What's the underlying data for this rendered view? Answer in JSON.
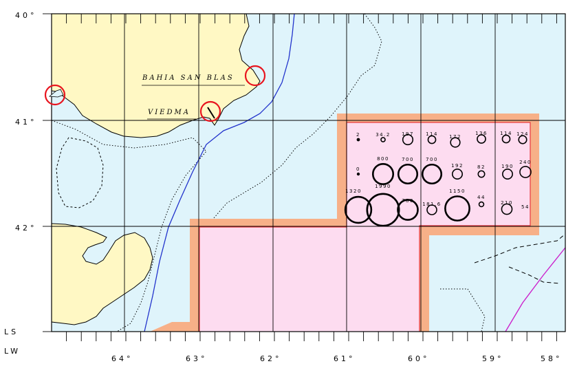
{
  "map": {
    "axes": {
      "longitude_labels": [
        "64°",
        "63°",
        "62°",
        "61°",
        "60°",
        "59°",
        "58°"
      ],
      "latitude_labels": [
        "40°",
        "41°",
        "42°"
      ],
      "lat_axis_name": "LS",
      "lon_axis_name": "LW"
    },
    "places": [
      {
        "id": "bahia-san-blas",
        "label": "BAHIA SAN BLAS"
      },
      {
        "id": "viedma",
        "label": "VIEDMA"
      }
    ],
    "colors": {
      "land": "#fff8c4",
      "sea": "#dff4fb",
      "study_area_fill": "#fddcf0",
      "study_area_border": "#f7b088",
      "boundary_line": "#e8383d",
      "highlight_circle": "#e8141e",
      "river": "#2233cc",
      "eez_line": "#cc22cc"
    },
    "stations": [
      {
        "value": "2"
      },
      {
        "value": "34.2"
      },
      {
        "value": "197"
      },
      {
        "value": "114"
      },
      {
        "value": "172"
      },
      {
        "value": "136"
      },
      {
        "value": "114"
      },
      {
        "value": "124"
      },
      {
        "value": "0"
      },
      {
        "value": "800"
      },
      {
        "value": "700"
      },
      {
        "value": "700"
      },
      {
        "value": "192"
      },
      {
        "value": "82"
      },
      {
        "value": "190"
      },
      {
        "value": "240"
      },
      {
        "value": "1320"
      },
      {
        "value": "1990"
      },
      {
        "value": "780"
      },
      {
        "value": "181.6"
      },
      {
        "value": "1150"
      },
      {
        "value": "44"
      },
      {
        "value": "210"
      },
      {
        "value": "54"
      }
    ]
  }
}
